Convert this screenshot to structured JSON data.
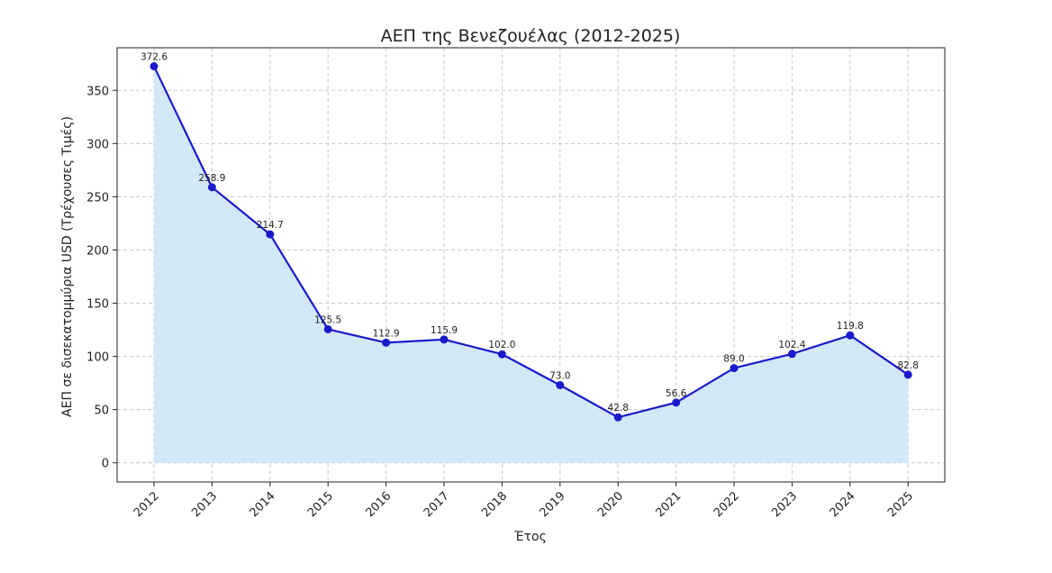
{
  "chart_data": {
    "type": "area",
    "title": "ΑΕΠ της Βενεζουέλας (2012-2025)",
    "xlabel": "Έτος",
    "ylabel": "ΑΕΠ σε δισεκατομμύρια USD (Τρέχουσες Τιμές)",
    "categories": [
      "2012",
      "2013",
      "2014",
      "2015",
      "2016",
      "2017",
      "2018",
      "2019",
      "2020",
      "2021",
      "2022",
      "2023",
      "2024",
      "2025"
    ],
    "values": [
      372.6,
      258.9,
      214.7,
      125.5,
      112.9,
      115.9,
      102.0,
      73.0,
      42.8,
      56.6,
      89.0,
      102.4,
      119.8,
      82.8
    ],
    "data_labels": [
      "372.6",
      "258.9",
      "214.7",
      "125.5",
      "112.9",
      "115.9",
      "102.0",
      "73.0",
      "42.8",
      "56.6",
      "89.0",
      "102.4",
      "119.8",
      "82.8"
    ],
    "yticks": [
      0,
      50,
      100,
      150,
      200,
      250,
      300,
      350
    ],
    "ylim": [
      -18,
      390
    ],
    "grid": true,
    "colors": {
      "line": "#1a1acc",
      "marker": "#1a1acc",
      "fill": "#d3e8f6"
    }
  }
}
